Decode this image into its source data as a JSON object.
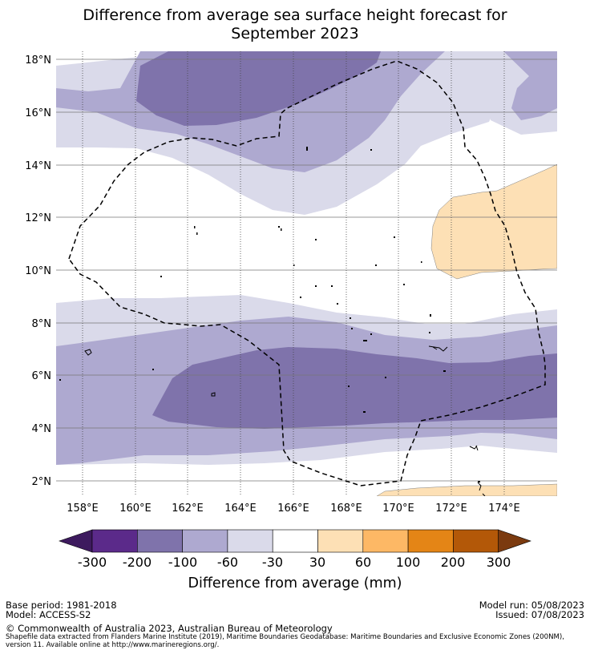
{
  "title": {
    "line1": "Difference from average sea surface height forecast for",
    "line2": "September 2023"
  },
  "map": {
    "lat_labels": [
      "18°N",
      "16°N",
      "14°N",
      "12°N",
      "10°N",
      "8°N",
      "6°N",
      "4°N",
      "2°N"
    ],
    "lon_labels": [
      "158°E",
      "160°E",
      "162°E",
      "164°E",
      "166°E",
      "168°E",
      "170°E",
      "172°E",
      "174°E"
    ],
    "extent": {
      "lon_min": 157,
      "lon_max": 176,
      "lat_min": 1.4,
      "lat_max": 18.3
    }
  },
  "colorbar": {
    "ticks": [
      "-300",
      "-200",
      "-100",
      "-60",
      "-30",
      "30",
      "60",
      "100",
      "200",
      "300"
    ],
    "colors": [
      "#3d1a5e",
      "#5b2a8a",
      "#7f73ab",
      "#aea9d0",
      "#dadaea",
      "#ffffff",
      "#fde0b5",
      "#fdb865",
      "#e48516",
      "#b35808",
      "#7b3a0f"
    ],
    "title": "Difference from average (mm)"
  },
  "footer": {
    "base_period": "Base period: 1981-2018",
    "model": "Model: ACCESS-S2",
    "model_run": "Model run: 05/08/2023",
    "issued": "Issued: 07/08/2023",
    "copyright": "© Commonwealth of Australia 2023, Australian Bureau of Meteorology",
    "shapefile": "Shapefile data extracted from Flanders Marine Institute (2019), Maritime Boundaries Geodatabase: Maritime Boundaries and Exclusive Economic Zones (200NM), version 11. Available online at http://www.marineregions.org/."
  }
}
